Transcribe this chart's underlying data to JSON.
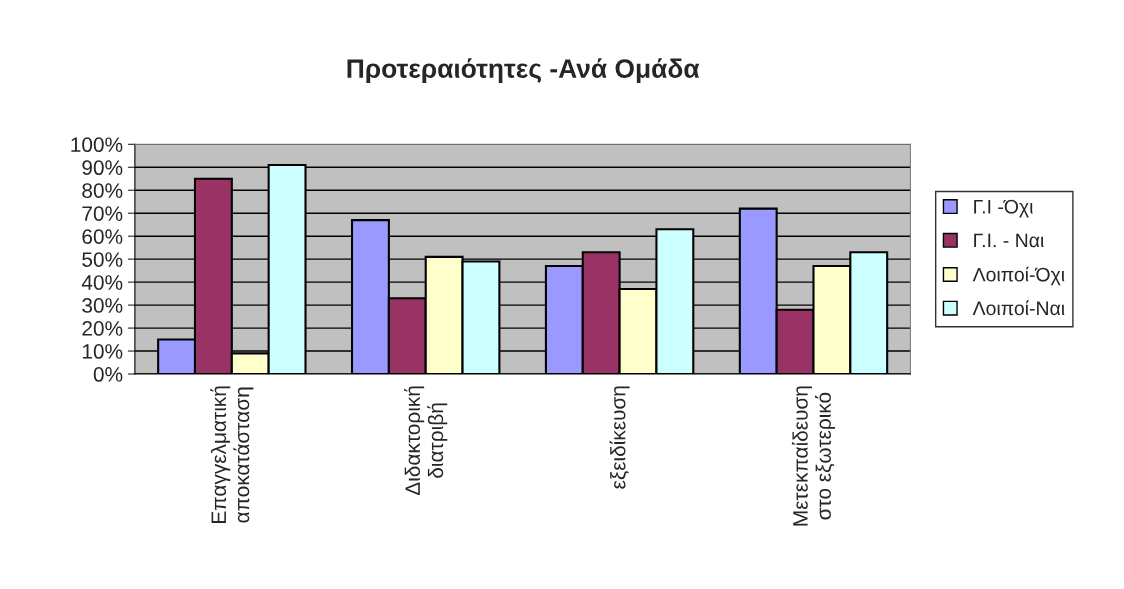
{
  "chart_data": {
    "type": "bar",
    "title": "Προτεραιότητες -Ανά Ομάδα",
    "categories": [
      "Επαγγελματική\nαποκατάσταση",
      "Διδακτορική\nδιατριβή",
      "εξειδίκευση",
      "Μετεκπαίδευση\nστο εξωτερικό"
    ],
    "series": [
      {
        "name": "Γ.Ι -Όχι",
        "color": "#9999ff",
        "values": [
          15,
          67,
          47,
          72
        ]
      },
      {
        "name": "Γ.Ι. - Ναι",
        "color": "#993366",
        "values": [
          85,
          33,
          53,
          28
        ]
      },
      {
        "name": "Λοιποί-Όχι",
        "color": "#ffffcc",
        "values": [
          9,
          51,
          37,
          47
        ]
      },
      {
        "name": "Λοιποί-Ναι",
        "color": "#ccffff",
        "values": [
          91,
          49,
          63,
          53
        ]
      }
    ],
    "ylim": [
      0,
      100
    ],
    "yticks": [
      {
        "value": 0,
        "label": "0%"
      },
      {
        "value": 10,
        "label": "10%"
      },
      {
        "value": 20,
        "label": "20%"
      },
      {
        "value": 30,
        "label": "30%"
      },
      {
        "value": 40,
        "label": "40%"
      },
      {
        "value": 50,
        "label": "50%"
      },
      {
        "value": 60,
        "label": "60%"
      },
      {
        "value": 70,
        "label": "70%"
      },
      {
        "value": 80,
        "label": "80%"
      },
      {
        "value": 90,
        "label": "90%"
      },
      {
        "value": 100,
        "label": "100%"
      }
    ],
    "grid": "y",
    "legend": "right"
  }
}
